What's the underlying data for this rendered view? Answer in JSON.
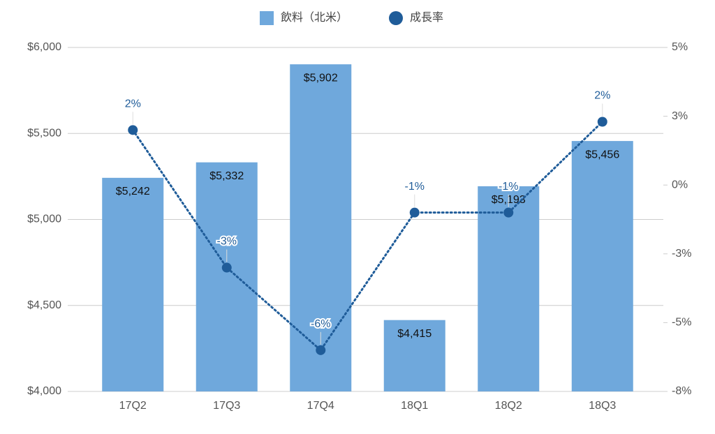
{
  "chart_data": {
    "type": "bar",
    "categories": [
      "17Q2",
      "17Q3",
      "17Q4",
      "18Q1",
      "18Q2",
      "18Q3"
    ],
    "series": [
      {
        "name": "飲料（北米）",
        "color": "#6fa8dc",
        "values": [
          5242,
          5332,
          5902,
          4415,
          5193,
          5456
        ],
        "value_labels": [
          "$5,242",
          "$5,332",
          "$5,902",
          "$4,415",
          "$5,193",
          "$5,456"
        ]
      },
      {
        "name": "成長率",
        "color": "#1f5c99",
        "type": "line",
        "axis": "y2",
        "values": [
          2.0,
          -3.0,
          -6.0,
          -1.0,
          -1.0,
          2.3
        ],
        "value_labels": [
          "2%",
          "-3%",
          "-6%",
          "-1%",
          "-1%",
          "2%"
        ]
      }
    ],
    "ylim": [
      4000,
      6000
    ],
    "yticks": [
      {
        "value": 4000,
        "label": "$4,000"
      },
      {
        "value": 4500,
        "label": "$4,500"
      },
      {
        "value": 5000,
        "label": "$5,000"
      },
      {
        "value": 5500,
        "label": "$5,500"
      },
      {
        "value": 6000,
        "label": "$6,000"
      }
    ],
    "y2lim": [
      -7.5,
      5
    ],
    "y2ticks": [
      {
        "value": -7.5,
        "label": "-8%"
      },
      {
        "value": -5,
        "label": "-5%"
      },
      {
        "value": -2.5,
        "label": "-3%"
      },
      {
        "value": 0,
        "label": "0%"
      },
      {
        "value": 2.5,
        "label": "3%"
      },
      {
        "value": 5,
        "label": "5%"
      }
    ],
    "grid": true
  }
}
